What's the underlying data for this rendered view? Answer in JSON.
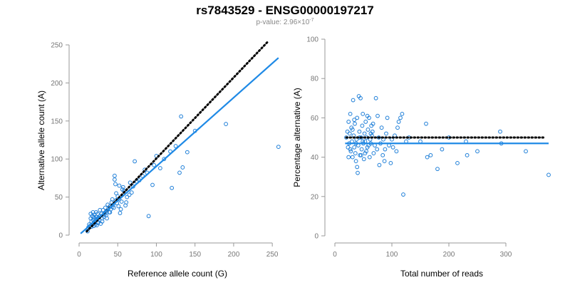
{
  "title": "rs7843529 - ENSG00000197217",
  "subtitle": "p-value: 2.96×10",
  "subtitle_exp": "-7",
  "colors": {
    "points": "#1f7fd8",
    "fit_line": "#1f8ae6",
    "reference_line": "#000000",
    "axes": "#999999"
  },
  "chart_data": [
    {
      "type": "scatter",
      "title": "",
      "xlabel": "Reference allele count (G)",
      "ylabel": "Alternative allele count (A)",
      "xlim": [
        0,
        260
      ],
      "ylim": [
        0,
        250
      ],
      "xticks": [
        0,
        50,
        100,
        150,
        200,
        250
      ],
      "yticks": [
        0,
        50,
        100,
        150,
        200,
        250
      ],
      "grid": false,
      "lines": [
        {
          "name": "",
          "style": "dotted",
          "color": "#000000",
          "points": [
            [
              10,
              5
            ],
            [
              245,
              255
            ]
          ]
        },
        {
          "name": "",
          "style": "solid",
          "color": "#1f8ae6",
          "points": [
            [
              2,
              2
            ],
            [
              258,
              233
            ]
          ]
        }
      ],
      "points": [
        [
          11,
          5
        ],
        [
          12,
          10
        ],
        [
          13,
          14
        ],
        [
          14,
          12
        ],
        [
          15,
          22
        ],
        [
          15,
          28
        ],
        [
          16,
          18
        ],
        [
          16,
          11
        ],
        [
          17,
          25
        ],
        [
          17,
          14
        ],
        [
          18,
          20
        ],
        [
          18,
          30
        ],
        [
          19,
          16
        ],
        [
          19,
          12
        ],
        [
          20,
          22
        ],
        [
          20,
          27
        ],
        [
          21,
          14
        ],
        [
          21,
          18
        ],
        [
          22,
          24
        ],
        [
          22,
          30
        ],
        [
          23,
          13
        ],
        [
          23,
          21
        ],
        [
          24,
          28
        ],
        [
          25,
          17
        ],
        [
          25,
          23
        ],
        [
          26,
          20
        ],
        [
          27,
          25
        ],
        [
          28,
          15
        ],
        [
          29,
          28
        ],
        [
          30,
          22
        ],
        [
          31,
          33
        ],
        [
          32,
          24
        ],
        [
          33,
          29
        ],
        [
          34,
          36
        ],
        [
          35,
          26
        ],
        [
          36,
          32
        ],
        [
          37,
          40
        ],
        [
          38,
          35
        ],
        [
          39,
          30
        ],
        [
          40,
          38
        ],
        [
          41,
          34
        ],
        [
          42,
          43
        ],
        [
          43,
          37
        ],
        [
          44,
          40
        ],
        [
          45,
          36
        ],
        [
          46,
          78
        ],
        [
          46,
          73
        ],
        [
          47,
          67
        ],
        [
          48,
          46
        ],
        [
          49,
          42
        ],
        [
          50,
          51
        ],
        [
          51,
          38
        ],
        [
          52,
          65
        ],
        [
          53,
          29
        ],
        [
          54,
          34
        ],
        [
          55,
          44
        ],
        [
          57,
          63
        ],
        [
          58,
          58
        ],
        [
          60,
          39
        ],
        [
          62,
          50
        ],
        [
          65,
          53
        ],
        [
          66,
          69
        ],
        [
          70,
          64
        ],
        [
          72,
          97
        ],
        [
          78,
          72
        ],
        [
          82,
          78
        ],
        [
          85,
          86
        ],
        [
          90,
          25
        ],
        [
          95,
          66
        ],
        [
          97,
          92
        ],
        [
          100,
          104
        ],
        [
          105,
          88
        ],
        [
          110,
          100
        ],
        [
          118,
          110
        ],
        [
          120,
          62
        ],
        [
          125,
          117
        ],
        [
          130,
          82
        ],
        [
          132,
          156
        ],
        [
          134,
          89
        ],
        [
          140,
          109
        ],
        [
          150,
          137
        ],
        [
          190,
          146
        ],
        [
          258,
          116
        ],
        [
          19,
          24
        ],
        [
          24,
          16
        ],
        [
          27,
          33
        ],
        [
          30,
          18
        ],
        [
          33,
          27
        ],
        [
          36,
          22
        ],
        [
          40,
          30
        ],
        [
          43,
          47
        ],
        [
          48,
          55
        ],
        [
          52,
          47
        ],
        [
          56,
          60
        ],
        [
          61,
          43
        ],
        [
          68,
          56
        ],
        [
          75,
          70
        ],
        [
          88,
          82
        ]
      ]
    },
    {
      "type": "scatter",
      "title": "",
      "xlabel": "Total number of reads",
      "ylabel": "Percentage alternative (A)",
      "xlim": [
        0,
        380
      ],
      "ylim": [
        0,
        100
      ],
      "xticks": [
        0,
        100,
        200,
        300
      ],
      "yticks": [
        0,
        20,
        40,
        60,
        80,
        100
      ],
      "grid": false,
      "lines": [
        {
          "name": "",
          "style": "dotted",
          "color": "#000000",
          "points": [
            [
              20,
              50
            ],
            [
              370,
              50
            ]
          ]
        },
        {
          "name": "",
          "style": "solid",
          "color": "#1f8ae6",
          "points": [
            [
              18,
              47
            ],
            [
              375,
              47
            ]
          ]
        }
      ],
      "points": [
        [
          20,
          50
        ],
        [
          22,
          53
        ],
        [
          23,
          45
        ],
        [
          24,
          58
        ],
        [
          25,
          47
        ],
        [
          26,
          52
        ],
        [
          27,
          62
        ],
        [
          28,
          43
        ],
        [
          29,
          55
        ],
        [
          30,
          48
        ],
        [
          31,
          40
        ],
        [
          32,
          69
        ],
        [
          33,
          51
        ],
        [
          34,
          45
        ],
        [
          35,
          57
        ],
        [
          36,
          42
        ],
        [
          37,
          38
        ],
        [
          38,
          49
        ],
        [
          39,
          60
        ],
        [
          40,
          32
        ],
        [
          41,
          46
        ],
        [
          42,
          71
        ],
        [
          43,
          53
        ],
        [
          44,
          41
        ],
        [
          45,
          70
        ],
        [
          46,
          50
        ],
        [
          47,
          44
        ],
        [
          48,
          56
        ],
        [
          49,
          62
        ],
        [
          50,
          47
        ],
        [
          51,
          39
        ],
        [
          52,
          52
        ],
        [
          53,
          48
        ],
        [
          54,
          58
        ],
        [
          55,
          43
        ],
        [
          56,
          50
        ],
        [
          57,
          45
        ],
        [
          58,
          54
        ],
        [
          60,
          60
        ],
        [
          61,
          40
        ],
        [
          62,
          49
        ],
        [
          63,
          47
        ],
        [
          64,
          56
        ],
        [
          65,
          51
        ],
        [
          66,
          53
        ],
        [
          68,
          42
        ],
        [
          70,
          46
        ],
        [
          72,
          70
        ],
        [
          74,
          44
        ],
        [
          75,
          61
        ],
        [
          77,
          50
        ],
        [
          78,
          36
        ],
        [
          80,
          47
        ],
        [
          82,
          55
        ],
        [
          84,
          41
        ],
        [
          85,
          49
        ],
        [
          87,
          38
        ],
        [
          88,
          44
        ],
        [
          90,
          52
        ],
        [
          92,
          60
        ],
        [
          95,
          46
        ],
        [
          98,
          37
        ],
        [
          100,
          49
        ],
        [
          102,
          45
        ],
        [
          105,
          51
        ],
        [
          108,
          43
        ],
        [
          110,
          55
        ],
        [
          112,
          58
        ],
        [
          115,
          60
        ],
        [
          118,
          62
        ],
        [
          120,
          21
        ],
        [
          125,
          48
        ],
        [
          130,
          50
        ],
        [
          150,
          48
        ],
        [
          160,
          57
        ],
        [
          162,
          40
        ],
        [
          168,
          41
        ],
        [
          180,
          34
        ],
        [
          188,
          44
        ],
        [
          200,
          50
        ],
        [
          215,
          37
        ],
        [
          230,
          48
        ],
        [
          232,
          41
        ],
        [
          250,
          43
        ],
        [
          290,
          53
        ],
        [
          292,
          47
        ],
        [
          335,
          43
        ],
        [
          375,
          31
        ],
        [
          24,
          40
        ],
        [
          27,
          44
        ],
        [
          31,
          54
        ],
        [
          34,
          59
        ],
        [
          37,
          47
        ],
        [
          39,
          35
        ],
        [
          43,
          50
        ],
        [
          46,
          41
        ],
        [
          49,
          48
        ],
        [
          53,
          42
        ],
        [
          57,
          61
        ],
        [
          59,
          46
        ],
        [
          63,
          52
        ],
        [
          67,
          57
        ]
      ]
    }
  ]
}
